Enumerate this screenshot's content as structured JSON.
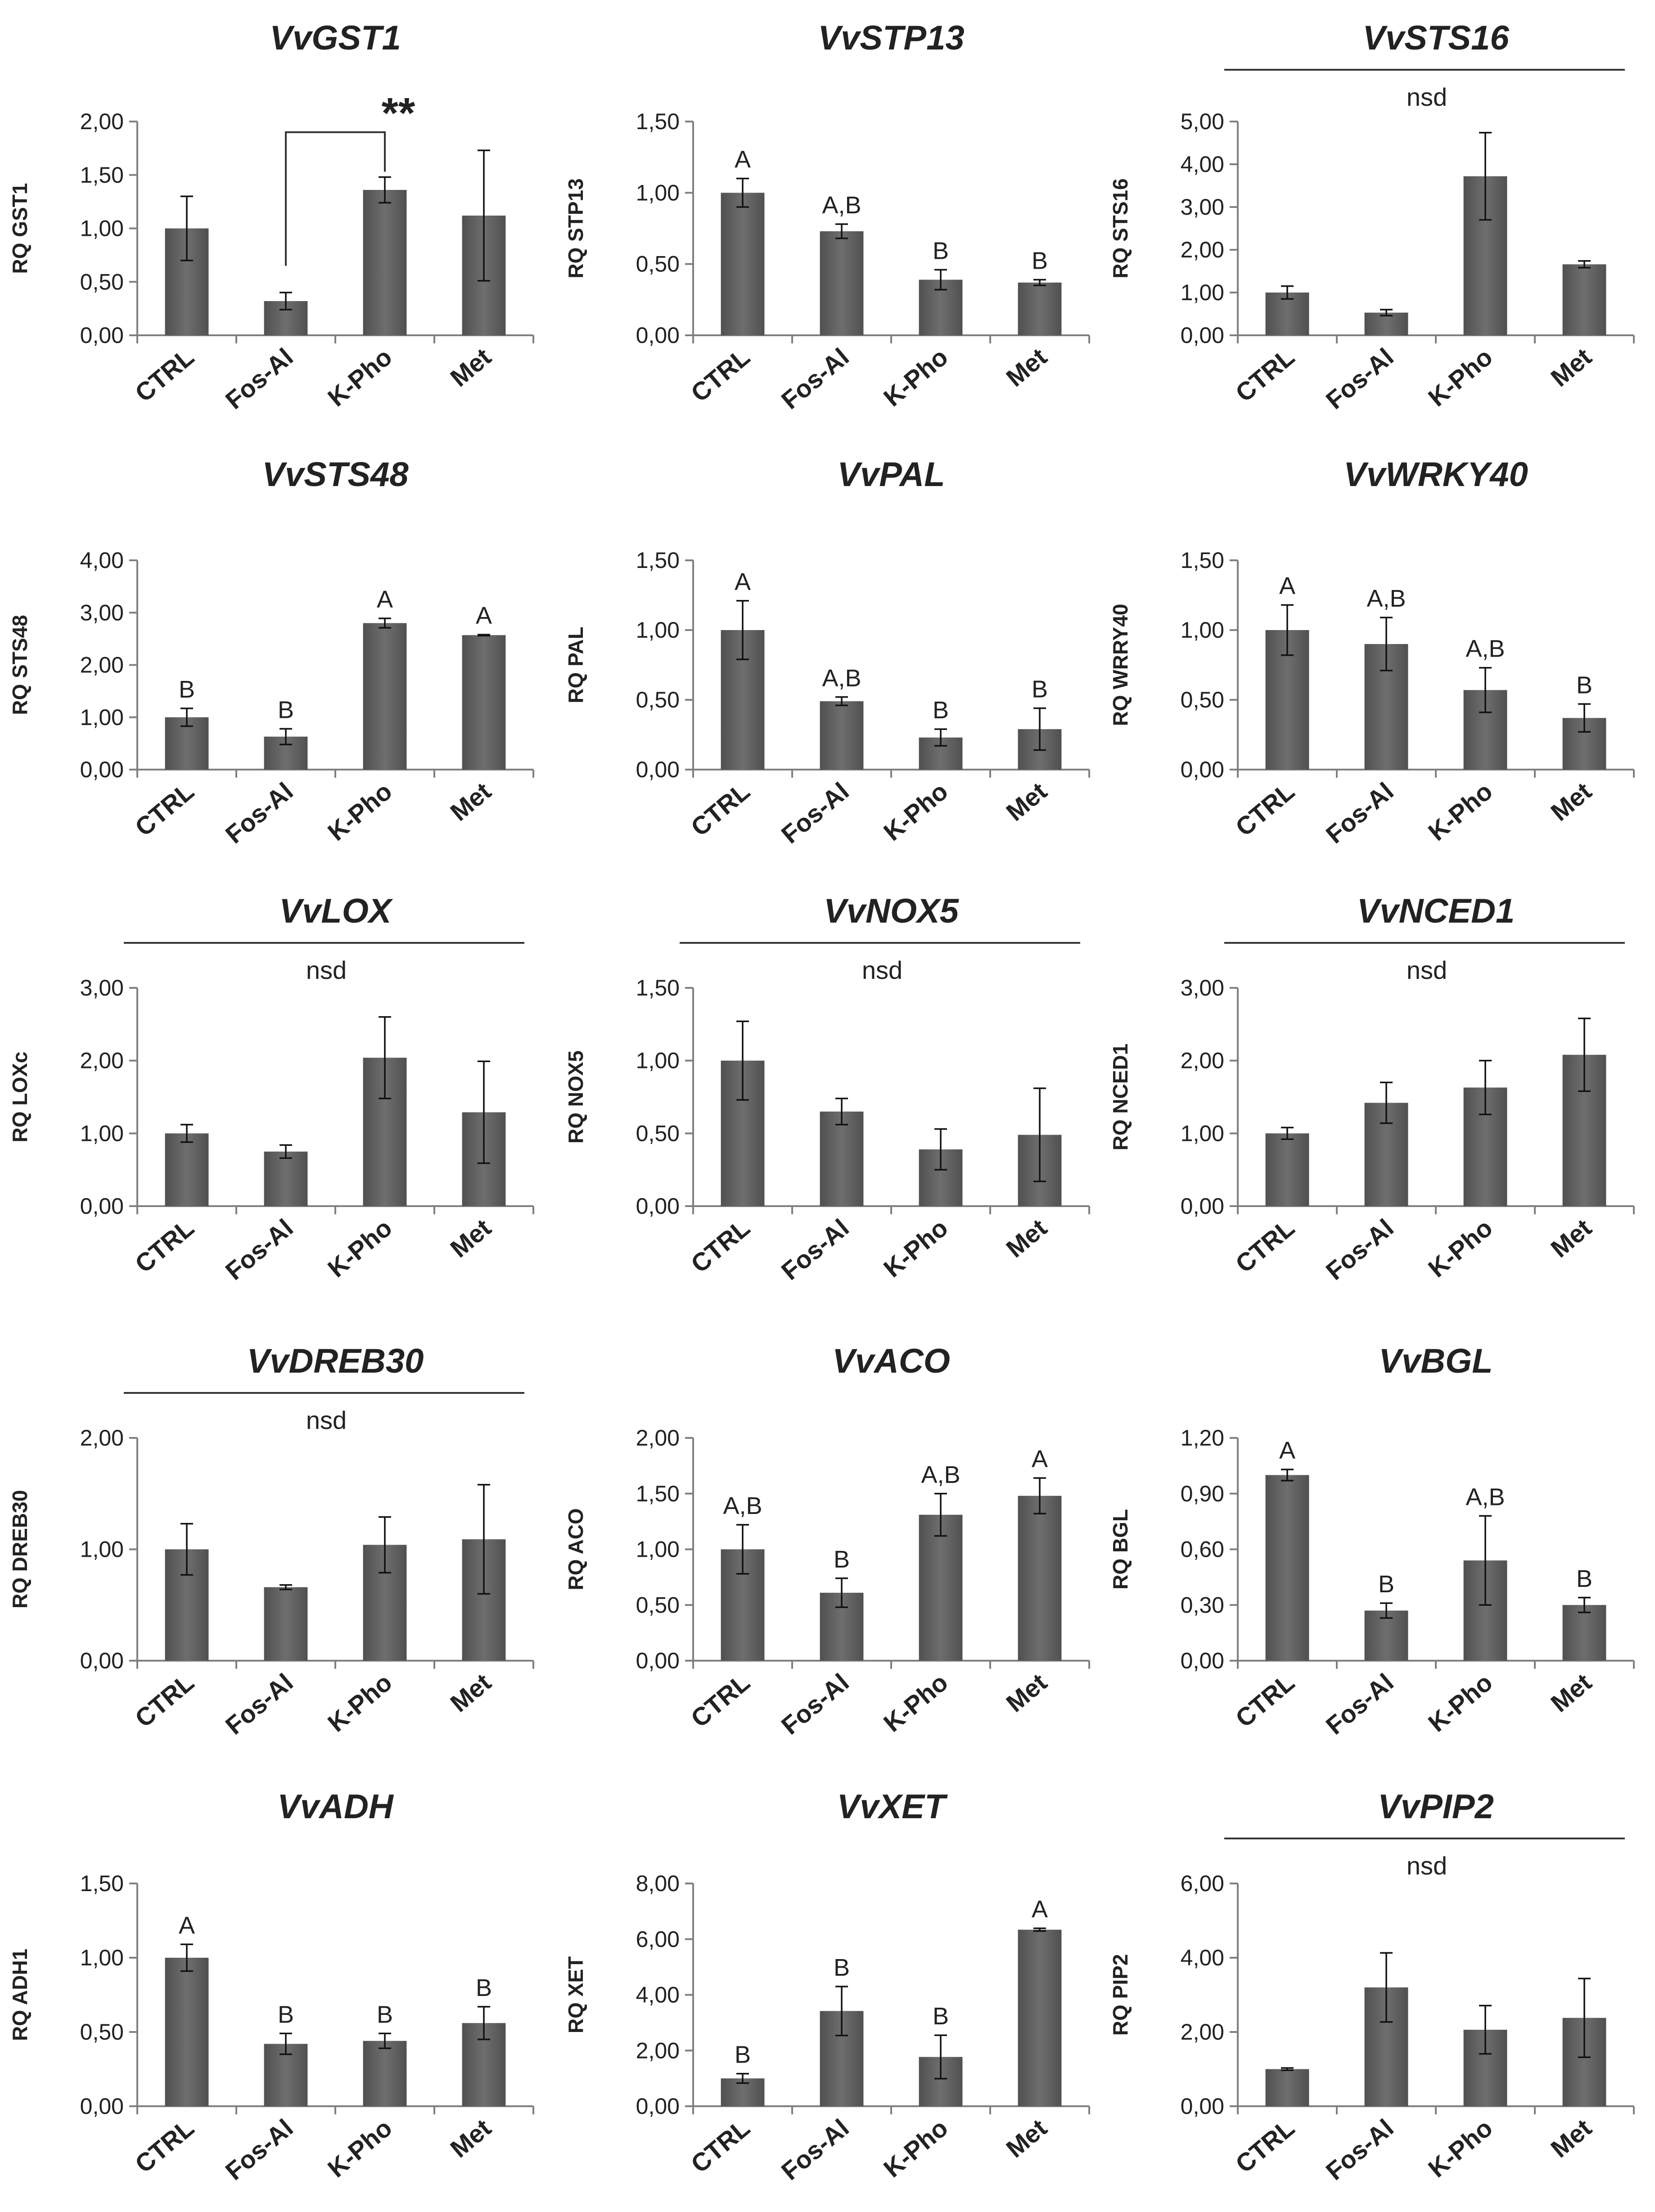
{
  "figure": {
    "description_hidden": ""
  },
  "chart_data": [
    {
      "type": "bar",
      "title": "VvGST1",
      "ylabel": "RQ GST1",
      "categories": [
        "CTRL",
        "Fos-Al",
        "K-Pho",
        "Met"
      ],
      "values": [
        1.0,
        0.32,
        1.36,
        1.12
      ],
      "errors": [
        0.3,
        0.08,
        0.12,
        0.61
      ],
      "ylim": [
        0,
        2
      ],
      "yticks": [
        "0,00",
        "0,50",
        "1,00",
        "1,50",
        "2,00"
      ],
      "letters": [
        "",
        "",
        "",
        ""
      ],
      "nsd": "",
      "significance": {
        "text": "**",
        "from": 1,
        "to": 2
      }
    },
    {
      "type": "bar",
      "title": "VvSTP13",
      "ylabel": "RQ STP13",
      "categories": [
        "CTRL",
        "Fos-Al",
        "K-Pho",
        "Met"
      ],
      "values": [
        1.0,
        0.73,
        0.39,
        0.37
      ],
      "errors": [
        0.1,
        0.05,
        0.07,
        0.02
      ],
      "ylim": [
        0,
        1.5
      ],
      "yticks": [
        "0,00",
        "0,50",
        "1,00",
        "1,50"
      ],
      "letters": [
        "A",
        "A,B",
        "B",
        "B"
      ],
      "nsd": ""
    },
    {
      "type": "bar",
      "title": "VvSTS16",
      "ylabel": "RQ STS16",
      "categories": [
        "CTRL",
        "Fos-Al",
        "K-Pho",
        "Met"
      ],
      "values": [
        1.0,
        0.53,
        3.72,
        1.66
      ],
      "errors": [
        0.15,
        0.07,
        1.02,
        0.08
      ],
      "ylim": [
        0,
        5
      ],
      "yticks": [
        "0,00",
        "1,00",
        "2,00",
        "3,00",
        "4,00",
        "5,00"
      ],
      "letters": [
        "",
        "",
        "",
        ""
      ],
      "nsd": "nsd"
    },
    {
      "type": "bar",
      "title": "VvSTS48",
      "ylabel": "RQ STS48",
      "categories": [
        "CTRL",
        "Fos-Al",
        "K-Pho",
        "Met"
      ],
      "values": [
        1.0,
        0.63,
        2.8,
        2.57
      ],
      "errors": [
        0.17,
        0.15,
        0.09,
        0.01
      ],
      "ylim": [
        0,
        4
      ],
      "yticks": [
        "0,00",
        "1,00",
        "2,00",
        "3,00",
        "4,00"
      ],
      "letters": [
        "B",
        "B",
        "A",
        "A"
      ],
      "nsd": ""
    },
    {
      "type": "bar",
      "title": "VvPAL",
      "ylabel": "RQ PAL",
      "categories": [
        "CTRL",
        "Fos-Al",
        "K-Pho",
        "Met"
      ],
      "values": [
        1.0,
        0.49,
        0.23,
        0.29
      ],
      "errors": [
        0.21,
        0.03,
        0.06,
        0.15
      ],
      "ylim": [
        0,
        1.5
      ],
      "yticks": [
        "0,00",
        "0,50",
        "1,00",
        "1,50"
      ],
      "letters": [
        "A",
        "A,B",
        "B",
        "B"
      ],
      "nsd": ""
    },
    {
      "type": "bar",
      "title": "VvWRKY40",
      "ylabel": "RQ WRRY40",
      "categories": [
        "CTRL",
        "Fos-Al",
        "K-Pho",
        "Met"
      ],
      "values": [
        1.0,
        0.9,
        0.57,
        0.37
      ],
      "errors": [
        0.18,
        0.19,
        0.16,
        0.1
      ],
      "ylim": [
        0,
        1.5
      ],
      "yticks": [
        "0,00",
        "0,50",
        "1,00",
        "1,50"
      ],
      "letters": [
        "A",
        "A,B",
        "A,B",
        "B"
      ],
      "nsd": ""
    },
    {
      "type": "bar",
      "title": "VvLOX",
      "ylabel": "RQ LOXc",
      "categories": [
        "CTRL",
        "Fos-Al",
        "K-Pho",
        "Met"
      ],
      "values": [
        1.0,
        0.75,
        2.04,
        1.29
      ],
      "errors": [
        0.12,
        0.09,
        0.56,
        0.7
      ],
      "ylim": [
        0,
        3
      ],
      "yticks": [
        "0,00",
        "1,00",
        "2,00",
        "3,00"
      ],
      "letters": [
        "",
        "",
        "",
        ""
      ],
      "nsd": "nsd"
    },
    {
      "type": "bar",
      "title": "VvNOX5",
      "ylabel": "RQ NOX5",
      "categories": [
        "CTRL",
        "Fos-Al",
        "K-Pho",
        "Met"
      ],
      "values": [
        1.0,
        0.65,
        0.39,
        0.49
      ],
      "errors": [
        0.27,
        0.09,
        0.14,
        0.32
      ],
      "ylim": [
        0,
        1.5
      ],
      "yticks": [
        "0,00",
        "0,50",
        "1,00",
        "1,50"
      ],
      "letters": [
        "",
        "",
        "",
        ""
      ],
      "nsd": "nsd"
    },
    {
      "type": "bar",
      "title": "VvNCED1",
      "ylabel": "RQ NCED1",
      "categories": [
        "CTRL",
        "Fos-Al",
        "K-Pho",
        "Met"
      ],
      "values": [
        1.0,
        1.42,
        1.63,
        2.08
      ],
      "errors": [
        0.08,
        0.28,
        0.37,
        0.5
      ],
      "ylim": [
        0,
        3
      ],
      "yticks": [
        "0,00",
        "1,00",
        "2,00",
        "3,00"
      ],
      "letters": [
        "",
        "",
        "",
        ""
      ],
      "nsd": "nsd"
    },
    {
      "type": "bar",
      "title": "VvDREB30",
      "ylabel": "RQ DREB30",
      "categories": [
        "CTRL",
        "Fos-Al",
        "K-Pho",
        "Met"
      ],
      "values": [
        1.0,
        0.66,
        1.04,
        1.09
      ],
      "errors": [
        0.23,
        0.02,
        0.25,
        0.49
      ],
      "ylim": [
        0,
        2
      ],
      "yticks": [
        "0,00",
        "1,00",
        "2,00"
      ],
      "letters": [
        "",
        "",
        "",
        ""
      ],
      "nsd": "nsd"
    },
    {
      "type": "bar",
      "title": "VvACO",
      "ylabel": "RQ ACO",
      "categories": [
        "CTRL",
        "Fos-Al",
        "K-Pho",
        "Met"
      ],
      "values": [
        1.0,
        0.61,
        1.31,
        1.48
      ],
      "errors": [
        0.22,
        0.13,
        0.19,
        0.16
      ],
      "ylim": [
        0,
        2
      ],
      "yticks": [
        "0,00",
        "0,50",
        "1,00",
        "1,50",
        "2,00"
      ],
      "letters": [
        "A,B",
        "B",
        "A,B",
        "A"
      ],
      "nsd": ""
    },
    {
      "type": "bar",
      "title": "VvBGL",
      "ylabel": "RQ BGL",
      "categories": [
        "CTRL",
        "Fos-Al",
        "K-Pho",
        "Met"
      ],
      "values": [
        1.0,
        0.27,
        0.54,
        0.3
      ],
      "errors": [
        0.03,
        0.04,
        0.24,
        0.04
      ],
      "ylim": [
        0,
        1.2
      ],
      "yticks": [
        "0,00",
        "0,30",
        "0,60",
        "0,90",
        "1,20"
      ],
      "letters": [
        "A",
        "B",
        "A,B",
        "B"
      ],
      "nsd": ""
    },
    {
      "type": "bar",
      "title": "VvADH",
      "ylabel": "RQ ADH1",
      "categories": [
        "CTRL",
        "Fos-Al",
        "K-Pho",
        "Met"
      ],
      "values": [
        1.0,
        0.42,
        0.44,
        0.56
      ],
      "errors": [
        0.09,
        0.07,
        0.05,
        0.11
      ],
      "ylim": [
        0,
        1.5
      ],
      "yticks": [
        "0,00",
        "0,50",
        "1,00",
        "1,50"
      ],
      "letters": [
        "A",
        "B",
        "B",
        "B"
      ],
      "nsd": ""
    },
    {
      "type": "bar",
      "title": "VvXET",
      "ylabel": "RQ XET",
      "categories": [
        "CTRL",
        "Fos-Al",
        "K-Pho",
        "Met"
      ],
      "values": [
        1.0,
        3.42,
        1.77,
        6.34
      ],
      "errors": [
        0.17,
        0.88,
        0.78,
        0.05
      ],
      "ylim": [
        0,
        8
      ],
      "yticks": [
        "0,00",
        "2,00",
        "4,00",
        "6,00",
        "8,00"
      ],
      "letters": [
        "B",
        "B",
        "B",
        "A"
      ],
      "nsd": ""
    },
    {
      "type": "bar",
      "title": "VvPIP2",
      "ylabel": "RQ PIP2",
      "categories": [
        "CTRL",
        "Fos-Al",
        "K-Pho",
        "Met"
      ],
      "values": [
        1.0,
        3.2,
        2.06,
        2.38
      ],
      "errors": [
        0.03,
        0.93,
        0.65,
        1.06
      ],
      "ylim": [
        0,
        6
      ],
      "yticks": [
        "0,00",
        "2,00",
        "4,00",
        "6,00"
      ],
      "letters": [
        "",
        "",
        "",
        ""
      ],
      "nsd": "nsd"
    }
  ]
}
